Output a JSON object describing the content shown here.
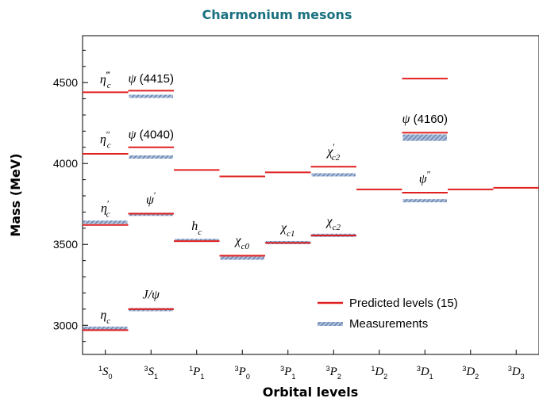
{
  "chart_data": {
    "type": "energy-level diagram",
    "title": "Charmonium mesons",
    "xlabel": "Orbital levels",
    "ylabel": "Mass (MeV)",
    "ylim": [
      2820,
      4790
    ],
    "yticks": [
      3000,
      3500,
      4000,
      4500
    ],
    "ymajor": 500,
    "yminor": 100,
    "categories": [
      {
        "sup": "1",
        "main": "S",
        "sub": "0"
      },
      {
        "sup": "3",
        "main": "S",
        "sub": "1"
      },
      {
        "sup": "1",
        "main": "P",
        "sub": "1"
      },
      {
        "sup": "3",
        "main": "P",
        "sub": "0"
      },
      {
        "sup": "3",
        "main": "P",
        "sub": "1"
      },
      {
        "sup": "3",
        "main": "P",
        "sub": "2"
      },
      {
        "sup": "1",
        "main": "D",
        "sub": "2"
      },
      {
        "sup": "3",
        "main": "D",
        "sub": "1"
      },
      {
        "sup": "3",
        "main": "D",
        "sub": "2"
      },
      {
        "sup": "3",
        "main": "D",
        "sub": "3"
      }
    ],
    "series": [
      {
        "name": "Predicted levels (15)",
        "color": "#e02020",
        "points": [
          {
            "cat": 0,
            "mass": 2970
          },
          {
            "cat": 0,
            "mass": 3620
          },
          {
            "cat": 0,
            "mass": 4060
          },
          {
            "cat": 0,
            "mass": 4440
          },
          {
            "cat": 1,
            "mass": 3100
          },
          {
            "cat": 1,
            "mass": 3690
          },
          {
            "cat": 1,
            "mass": 4100
          },
          {
            "cat": 1,
            "mass": 4450
          },
          {
            "cat": 2,
            "mass": 3520
          },
          {
            "cat": 2,
            "mass": 3960
          },
          {
            "cat": 3,
            "mass": 3430
          },
          {
            "cat": 3,
            "mass": 3920
          },
          {
            "cat": 4,
            "mass": 3510
          },
          {
            "cat": 4,
            "mass": 3945
          },
          {
            "cat": 5,
            "mass": 3555
          },
          {
            "cat": 5,
            "mass": 3980
          },
          {
            "cat": 6,
            "mass": 3840
          },
          {
            "cat": 7,
            "mass": 3820
          },
          {
            "cat": 7,
            "mass": 4190
          },
          {
            "cat": 7,
            "mass": 4525
          },
          {
            "cat": 8,
            "mass": 3840
          },
          {
            "cat": 9,
            "mass": 3850
          }
        ]
      },
      {
        "name": "Measurements",
        "color": "#6f8fbf",
        "points": [
          {
            "cat": 0,
            "mass": 2980,
            "unc": 12
          },
          {
            "cat": 0,
            "mass": 3637,
            "unc": 10
          },
          {
            "cat": 1,
            "mass": 3097,
            "unc": 6
          },
          {
            "cat": 1,
            "mass": 3686,
            "unc": 6
          },
          {
            "cat": 1,
            "mass": 4040,
            "unc": 10
          },
          {
            "cat": 1,
            "mass": 4415,
            "unc": 8
          },
          {
            "cat": 2,
            "mass": 3525,
            "unc": 6
          },
          {
            "cat": 3,
            "mass": 3415,
            "unc": 8
          },
          {
            "cat": 4,
            "mass": 3511,
            "unc": 6
          },
          {
            "cat": 5,
            "mass": 3556,
            "unc": 6
          },
          {
            "cat": 5,
            "mass": 3930,
            "unc": 8
          },
          {
            "cat": 7,
            "mass": 3770,
            "unc": 8
          },
          {
            "cat": 7,
            "mass": 4160,
            "unc": 20
          }
        ]
      }
    ],
    "level_labels": [
      {
        "sym": "η",
        "sub": "c",
        "sup": "",
        "text": "",
        "cat": 0,
        "mass": 3040
      },
      {
        "sym": "η",
        "sub": "c",
        "sup": "′",
        "text": "",
        "cat": 0,
        "mass": 3700
      },
      {
        "sym": "η",
        "sub": "c",
        "sup": "″",
        "text": "",
        "cat": 0,
        "mass": 4125
      },
      {
        "sym": "η",
        "sub": "c",
        "sup": "‴",
        "text": "",
        "cat": 0,
        "mass": 4495
      },
      {
        "sym": "J/ψ",
        "sub": "",
        "sup": "",
        "text": "",
        "cat": 1,
        "mass": 3165
      },
      {
        "sym": "ψ",
        "sub": "",
        "sup": "′",
        "text": "",
        "cat": 1,
        "mass": 3750
      },
      {
        "sym": "ψ",
        "sub": "",
        "sup": "",
        "text": " (4040)",
        "cat": 1,
        "mass": 4155
      },
      {
        "sym": "ψ",
        "sub": "",
        "sup": "",
        "text": " (4415)",
        "cat": 1,
        "mass": 4500
      },
      {
        "sym": "h",
        "sub": "c",
        "sup": "",
        "text": "",
        "cat": 2,
        "mass": 3590
      },
      {
        "sym": "χ",
        "sub": "c0",
        "sup": "",
        "text": "",
        "cat": 3,
        "mass": 3500
      },
      {
        "sym": "χ",
        "sub": "c1",
        "sup": "",
        "text": "",
        "cat": 4,
        "mass": 3580
      },
      {
        "sym": "χ",
        "sub": "c2",
        "sup": "",
        "text": "",
        "cat": 5,
        "mass": 3620
      },
      {
        "sym": "χ",
        "sub": "c2",
        "sup": "′",
        "text": "",
        "cat": 5,
        "mass": 4050
      },
      {
        "sym": "ψ",
        "sub": "",
        "sup": "",
        "text": " (4160)",
        "cat": 7,
        "mass": 4250
      },
      {
        "sym": "ψ",
        "sub": "",
        "sup": "″",
        "text": "",
        "cat": 7,
        "mass": 3880
      }
    ],
    "legend": {
      "position": "bottom-right"
    },
    "grid": false
  }
}
